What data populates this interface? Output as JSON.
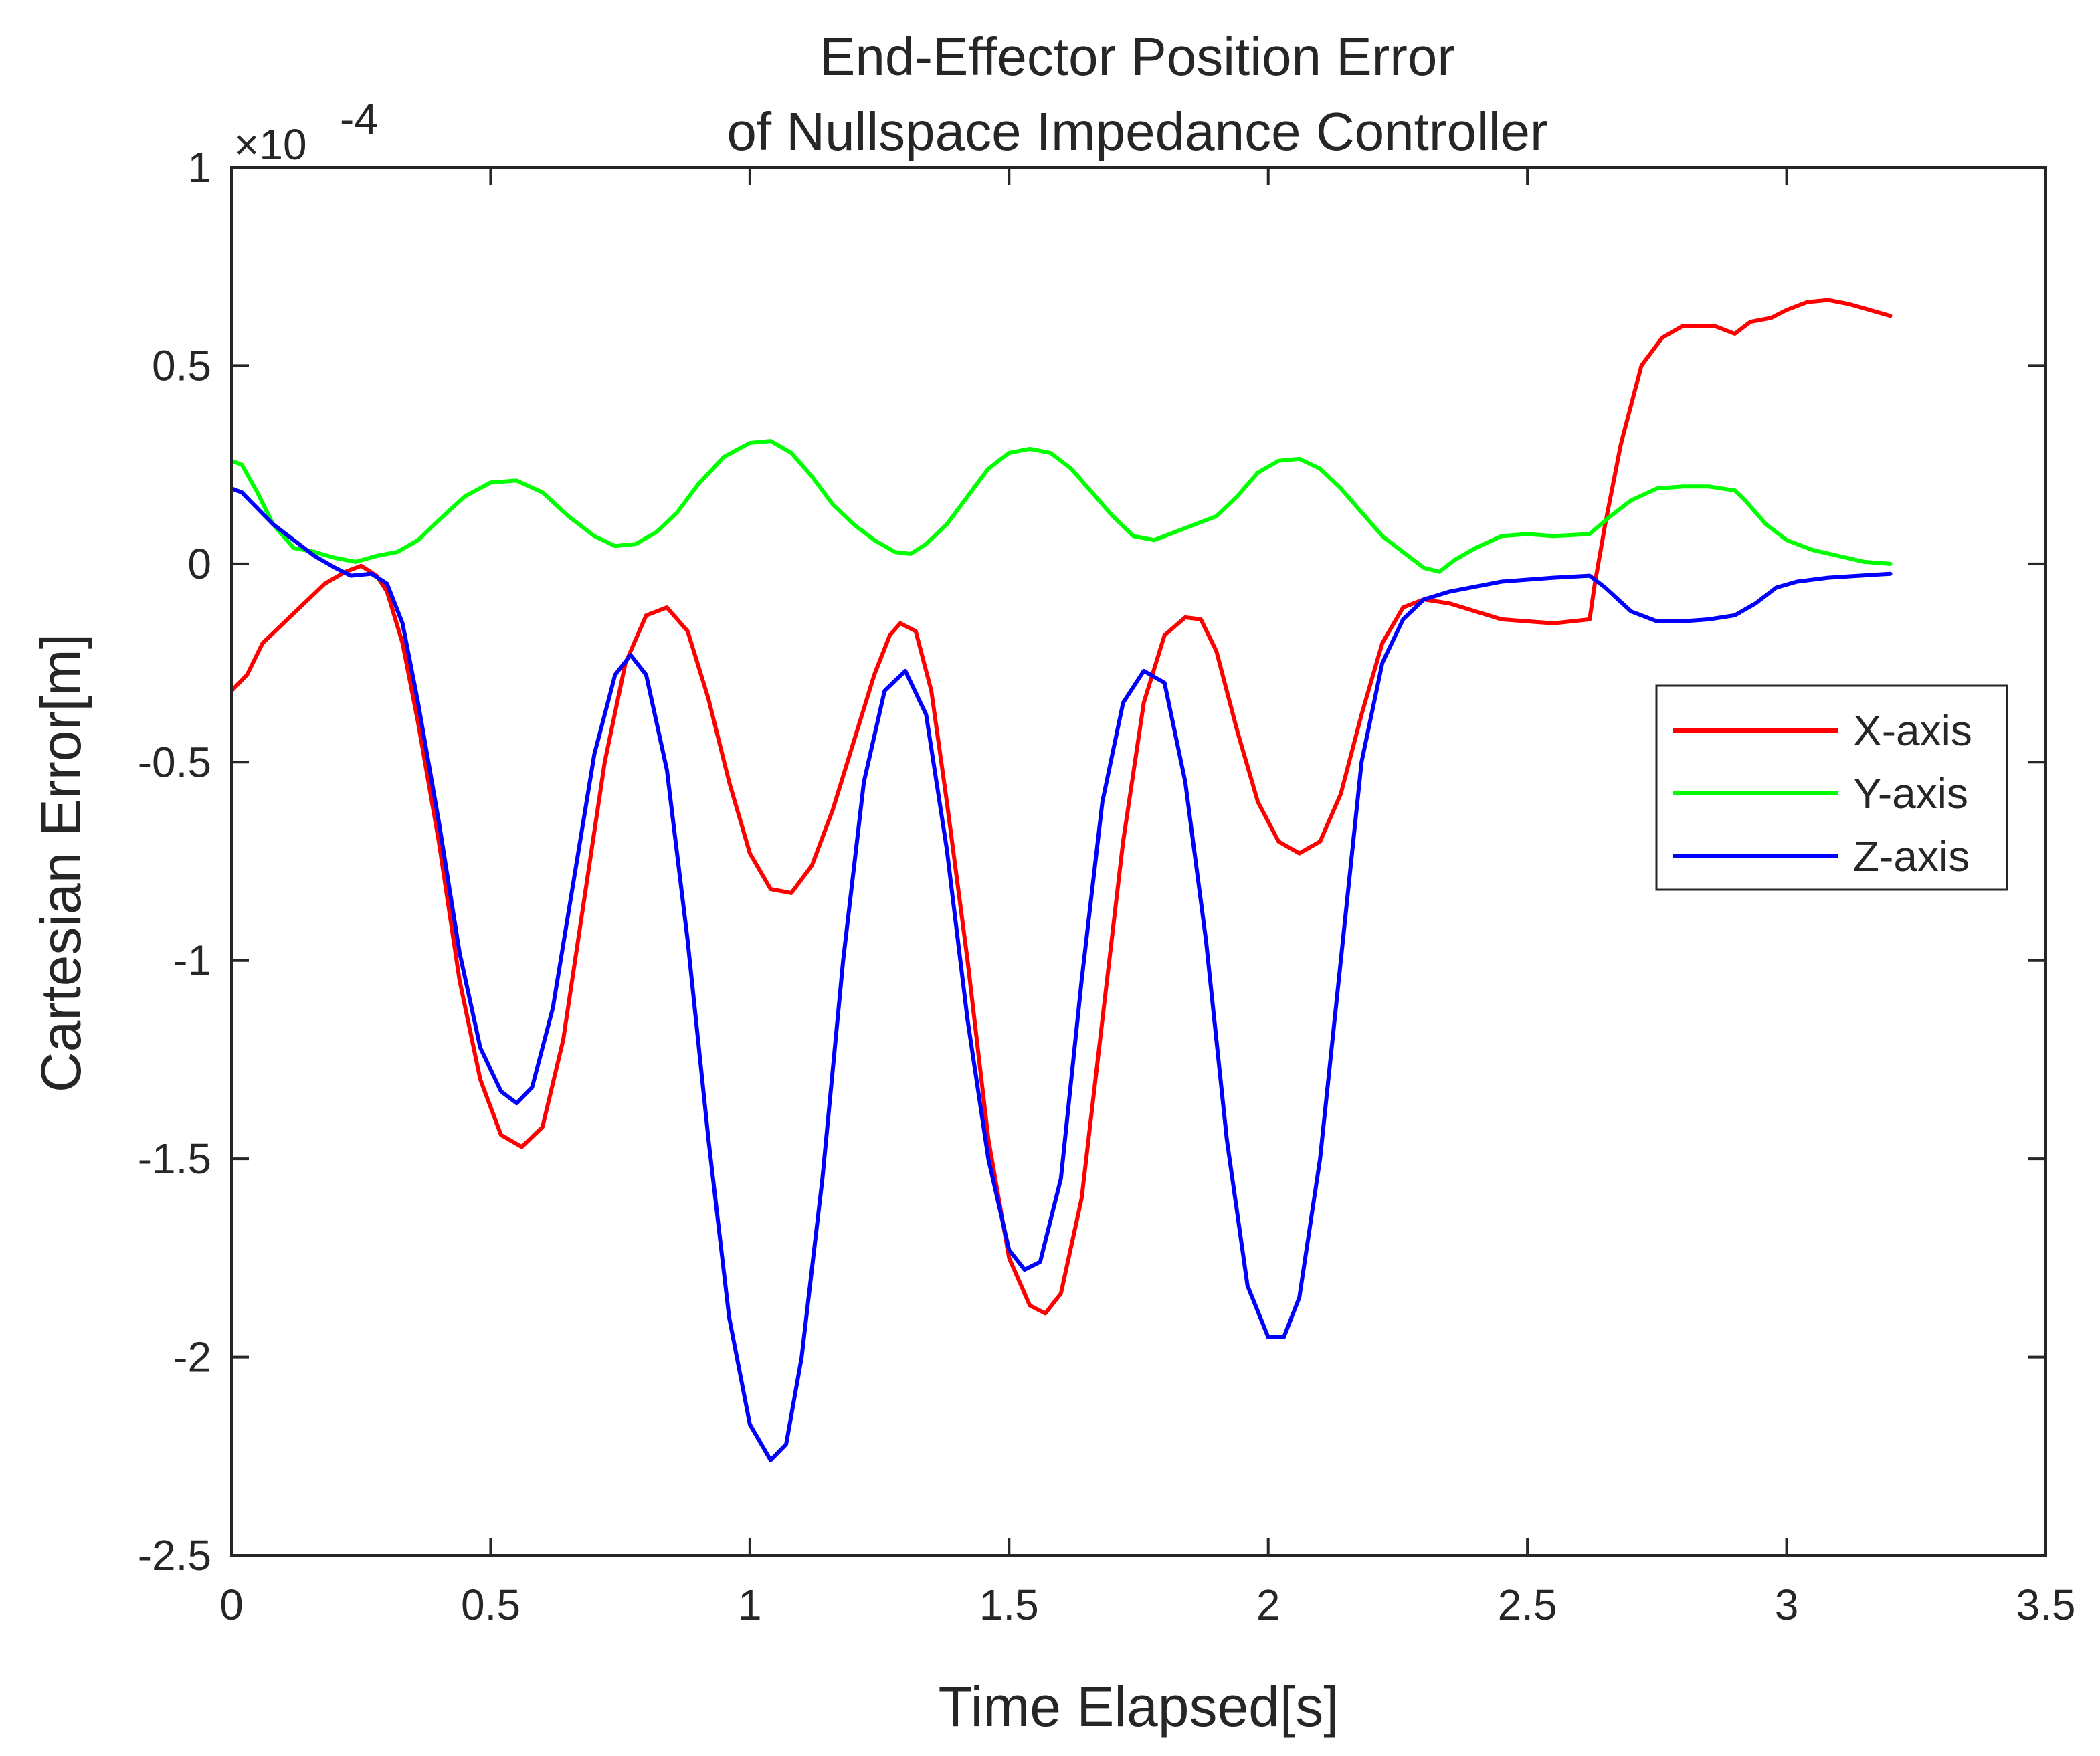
{
  "chart_data": {
    "type": "line",
    "title": [
      "End-Effector Position Error",
      "of Nullspace Impedance Controller"
    ],
    "xlabel": "Time Elapsed[s]",
    "ylabel": "Cartesian Error[m]",
    "y_exponent_label": "×10",
    "y_exponent_power": "-4",
    "xlim": [
      0,
      3.5
    ],
    "ylim": [
      -2.5,
      1
    ],
    "xticks": [
      0,
      0.5,
      1,
      1.5,
      2,
      2.5,
      3,
      3.5
    ],
    "xtick_labels": [
      "0",
      "0.5",
      "1",
      "1.5",
      "2",
      "2.5",
      "3",
      "3.5"
    ],
    "yticks": [
      -2.5,
      -2,
      -1.5,
      -1,
      -0.5,
      0,
      0.5,
      1
    ],
    "ytick_labels": [
      "-2.5",
      "-2",
      "-1.5",
      "-1",
      "-0.5",
      "0",
      "0.5",
      "1"
    ],
    "grid": false,
    "legend_position": "right",
    "series": [
      {
        "name": "X-axis",
        "color": "#ff0000",
        "points": [
          [
            0,
            -0.32
          ],
          [
            0.03,
            -0.28
          ],
          [
            0.06,
            -0.2
          ],
          [
            0.1,
            -0.15
          ],
          [
            0.14,
            -0.1
          ],
          [
            0.18,
            -0.05
          ],
          [
            0.22,
            -0.02
          ],
          [
            0.25,
            -0.005
          ],
          [
            0.28,
            -0.03
          ],
          [
            0.3,
            -0.07
          ],
          [
            0.33,
            -0.2
          ],
          [
            0.36,
            -0.4
          ],
          [
            0.4,
            -0.7
          ],
          [
            0.44,
            -1.05
          ],
          [
            0.48,
            -1.3
          ],
          [
            0.52,
            -1.44
          ],
          [
            0.56,
            -1.47
          ],
          [
            0.6,
            -1.42
          ],
          [
            0.64,
            -1.2
          ],
          [
            0.68,
            -0.85
          ],
          [
            0.72,
            -0.5
          ],
          [
            0.76,
            -0.25
          ],
          [
            0.8,
            -0.13
          ],
          [
            0.84,
            -0.11
          ],
          [
            0.88,
            -0.17
          ],
          [
            0.92,
            -0.34
          ],
          [
            0.96,
            -0.55
          ],
          [
            1.0,
            -0.73
          ],
          [
            1.04,
            -0.82
          ],
          [
            1.08,
            -0.83
          ],
          [
            1.12,
            -0.76
          ],
          [
            1.16,
            -0.62
          ],
          [
            1.2,
            -0.45
          ],
          [
            1.24,
            -0.28
          ],
          [
            1.27,
            -0.18
          ],
          [
            1.29,
            -0.15
          ],
          [
            1.32,
            -0.17
          ],
          [
            1.35,
            -0.32
          ],
          [
            1.38,
            -0.6
          ],
          [
            1.42,
            -1.0
          ],
          [
            1.46,
            -1.45
          ],
          [
            1.5,
            -1.75
          ],
          [
            1.54,
            -1.87
          ],
          [
            1.57,
            -1.89
          ],
          [
            1.6,
            -1.84
          ],
          [
            1.64,
            -1.6
          ],
          [
            1.68,
            -1.15
          ],
          [
            1.72,
            -0.7
          ],
          [
            1.76,
            -0.35
          ],
          [
            1.8,
            -0.18
          ],
          [
            1.84,
            -0.135
          ],
          [
            1.87,
            -0.14
          ],
          [
            1.9,
            -0.22
          ],
          [
            1.94,
            -0.42
          ],
          [
            1.98,
            -0.6
          ],
          [
            2.02,
            -0.7
          ],
          [
            2.06,
            -0.73
          ],
          [
            2.1,
            -0.7
          ],
          [
            2.14,
            -0.58
          ],
          [
            2.18,
            -0.38
          ],
          [
            2.22,
            -0.2
          ],
          [
            2.26,
            -0.11
          ],
          [
            2.3,
            -0.09
          ],
          [
            2.35,
            -0.1
          ],
          [
            2.45,
            -0.14
          ],
          [
            2.55,
            -0.15
          ],
          [
            2.62,
            -0.14
          ],
          [
            2.63,
            -0.05
          ],
          [
            2.65,
            0.1
          ],
          [
            2.68,
            0.3
          ],
          [
            2.72,
            0.5
          ],
          [
            2.76,
            0.57
          ],
          [
            2.8,
            0.6
          ],
          [
            2.86,
            0.6
          ],
          [
            2.9,
            0.58
          ],
          [
            2.93,
            0.61
          ],
          [
            2.97,
            0.62
          ],
          [
            3.0,
            0.64
          ],
          [
            3.04,
            0.66
          ],
          [
            3.08,
            0.665
          ],
          [
            3.12,
            0.655
          ],
          [
            3.16,
            0.64
          ],
          [
            3.2,
            0.625
          ]
        ]
      },
      {
        "name": "Y-axis",
        "color": "#00ff00",
        "points": [
          [
            0,
            0.26
          ],
          [
            0.02,
            0.25
          ],
          [
            0.05,
            0.18
          ],
          [
            0.08,
            0.1
          ],
          [
            0.12,
            0.04
          ],
          [
            0.16,
            0.03
          ],
          [
            0.2,
            0.015
          ],
          [
            0.24,
            0.005
          ],
          [
            0.28,
            0.02
          ],
          [
            0.32,
            0.03
          ],
          [
            0.36,
            0.06
          ],
          [
            0.4,
            0.11
          ],
          [
            0.45,
            0.17
          ],
          [
            0.5,
            0.205
          ],
          [
            0.55,
            0.21
          ],
          [
            0.6,
            0.18
          ],
          [
            0.65,
            0.12
          ],
          [
            0.7,
            0.07
          ],
          [
            0.74,
            0.045
          ],
          [
            0.78,
            0.05
          ],
          [
            0.82,
            0.08
          ],
          [
            0.86,
            0.13
          ],
          [
            0.9,
            0.2
          ],
          [
            0.95,
            0.27
          ],
          [
            1.0,
            0.305
          ],
          [
            1.04,
            0.31
          ],
          [
            1.08,
            0.28
          ],
          [
            1.12,
            0.22
          ],
          [
            1.16,
            0.15
          ],
          [
            1.2,
            0.1
          ],
          [
            1.24,
            0.06
          ],
          [
            1.28,
            0.03
          ],
          [
            1.31,
            0.025
          ],
          [
            1.34,
            0.05
          ],
          [
            1.38,
            0.1
          ],
          [
            1.42,
            0.17
          ],
          [
            1.46,
            0.24
          ],
          [
            1.5,
            0.28
          ],
          [
            1.54,
            0.29
          ],
          [
            1.58,
            0.28
          ],
          [
            1.62,
            0.24
          ],
          [
            1.66,
            0.18
          ],
          [
            1.7,
            0.12
          ],
          [
            1.74,
            0.07
          ],
          [
            1.78,
            0.06
          ],
          [
            1.82,
            0.08
          ],
          [
            1.86,
            0.1
          ],
          [
            1.9,
            0.12
          ],
          [
            1.94,
            0.17
          ],
          [
            1.98,
            0.23
          ],
          [
            2.02,
            0.26
          ],
          [
            2.06,
            0.265
          ],
          [
            2.1,
            0.24
          ],
          [
            2.14,
            0.19
          ],
          [
            2.18,
            0.13
          ],
          [
            2.22,
            0.07
          ],
          [
            2.26,
            0.03
          ],
          [
            2.3,
            -0.01
          ],
          [
            2.33,
            -0.02
          ],
          [
            2.36,
            0.01
          ],
          [
            2.4,
            0.04
          ],
          [
            2.45,
            0.07
          ],
          [
            2.5,
            0.075
          ],
          [
            2.55,
            0.07
          ],
          [
            2.62,
            0.075
          ],
          [
            2.66,
            0.12
          ],
          [
            2.7,
            0.16
          ],
          [
            2.75,
            0.19
          ],
          [
            2.8,
            0.195
          ],
          [
            2.85,
            0.195
          ],
          [
            2.9,
            0.185
          ],
          [
            2.92,
            0.16
          ],
          [
            2.96,
            0.1
          ],
          [
            3.0,
            0.06
          ],
          [
            3.05,
            0.035
          ],
          [
            3.1,
            0.02
          ],
          [
            3.15,
            0.005
          ],
          [
            3.2,
            0.0
          ]
        ]
      },
      {
        "name": "Z-axis",
        "color": "#0000ff",
        "points": [
          [
            0,
            0.19
          ],
          [
            0.02,
            0.18
          ],
          [
            0.05,
            0.14
          ],
          [
            0.08,
            0.1
          ],
          [
            0.12,
            0.06
          ],
          [
            0.16,
            0.02
          ],
          [
            0.2,
            -0.01
          ],
          [
            0.23,
            -0.03
          ],
          [
            0.27,
            -0.025
          ],
          [
            0.3,
            -0.05
          ],
          [
            0.33,
            -0.15
          ],
          [
            0.36,
            -0.35
          ],
          [
            0.4,
            -0.65
          ],
          [
            0.44,
            -0.98
          ],
          [
            0.48,
            -1.22
          ],
          [
            0.52,
            -1.33
          ],
          [
            0.55,
            -1.36
          ],
          [
            0.58,
            -1.32
          ],
          [
            0.62,
            -1.12
          ],
          [
            0.66,
            -0.8
          ],
          [
            0.7,
            -0.48
          ],
          [
            0.74,
            -0.28
          ],
          [
            0.77,
            -0.23
          ],
          [
            0.8,
            -0.28
          ],
          [
            0.84,
            -0.52
          ],
          [
            0.88,
            -0.95
          ],
          [
            0.92,
            -1.45
          ],
          [
            0.96,
            -1.9
          ],
          [
            1.0,
            -2.17
          ],
          [
            1.04,
            -2.26
          ],
          [
            1.07,
            -2.22
          ],
          [
            1.1,
            -2.0
          ],
          [
            1.14,
            -1.55
          ],
          [
            1.18,
            -1.0
          ],
          [
            1.22,
            -0.55
          ],
          [
            1.26,
            -0.32
          ],
          [
            1.3,
            -0.27
          ],
          [
            1.34,
            -0.38
          ],
          [
            1.38,
            -0.72
          ],
          [
            1.42,
            -1.15
          ],
          [
            1.46,
            -1.5
          ],
          [
            1.5,
            -1.73
          ],
          [
            1.53,
            -1.78
          ],
          [
            1.56,
            -1.76
          ],
          [
            1.6,
            -1.55
          ],
          [
            1.64,
            -1.05
          ],
          [
            1.68,
            -0.6
          ],
          [
            1.72,
            -0.35
          ],
          [
            1.76,
            -0.27
          ],
          [
            1.8,
            -0.3
          ],
          [
            1.84,
            -0.55
          ],
          [
            1.88,
            -0.95
          ],
          [
            1.92,
            -1.45
          ],
          [
            1.96,
            -1.82
          ],
          [
            2.0,
            -1.95
          ],
          [
            2.03,
            -1.95
          ],
          [
            2.06,
            -1.85
          ],
          [
            2.1,
            -1.5
          ],
          [
            2.14,
            -1.0
          ],
          [
            2.18,
            -0.5
          ],
          [
            2.22,
            -0.25
          ],
          [
            2.26,
            -0.14
          ],
          [
            2.3,
            -0.09
          ],
          [
            2.35,
            -0.07
          ],
          [
            2.45,
            -0.045
          ],
          [
            2.55,
            -0.035
          ],
          [
            2.62,
            -0.03
          ],
          [
            2.65,
            -0.06
          ],
          [
            2.7,
            -0.12
          ],
          [
            2.75,
            -0.145
          ],
          [
            2.8,
            -0.145
          ],
          [
            2.85,
            -0.14
          ],
          [
            2.9,
            -0.13
          ],
          [
            2.94,
            -0.1
          ],
          [
            2.98,
            -0.06
          ],
          [
            3.02,
            -0.045
          ],
          [
            3.08,
            -0.035
          ],
          [
            3.14,
            -0.03
          ],
          [
            3.2,
            -0.025
          ]
        ]
      }
    ]
  }
}
